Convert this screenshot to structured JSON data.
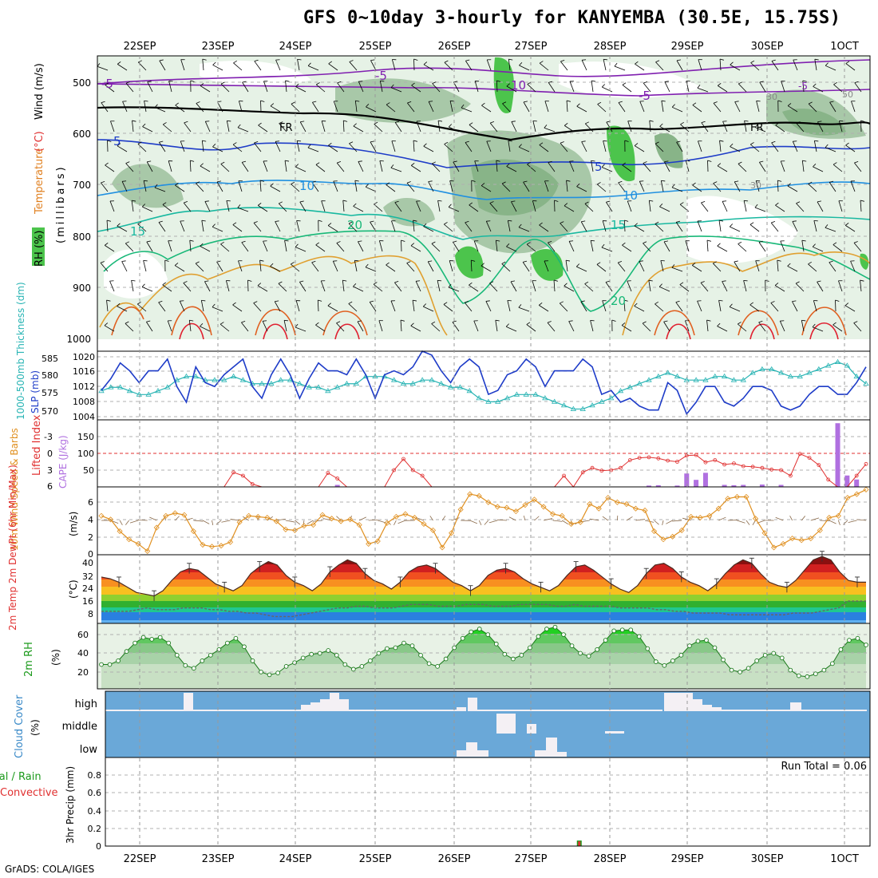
{
  "title": "GFS 0~10day 3-hourly for KANYEMBA (30.5E, 15.75S)",
  "credit": "GrADS: COLA/IGES",
  "colors": {
    "frame": "#000000",
    "grid": "#b0b0b0",
    "rh_shade_light": "#e6f2e6",
    "rh_shade_mid": "#a8c8a8",
    "rh_shade_dark": "#88b488",
    "rh_shade_green": "#4cc44c",
    "slp": "#1e3cc8",
    "thickness": "#28b4b4",
    "lifted_index": "#e03030",
    "cape": "#b070e0",
    "wind_speed": "#e09020",
    "rh2m": "#1c9a1c",
    "cloud_bg": "#6aa8d8",
    "cloud_bar": "#f4f0f4"
  },
  "chart_data": [
    {
      "type": "contour",
      "name": "upper-air",
      "x_labels": [
        "22SEP",
        "23SEP",
        "24SEP",
        "25SEP",
        "26SEP",
        "27SEP",
        "28SEP",
        "29SEP",
        "30SEP",
        "1OCT"
      ],
      "ylabel_left_1": "RH (%)",
      "ylabel_left_2": "Temperature",
      "ylabel_left_3": "(°C)",
      "ylabel_left_4": "Wind (m/s)",
      "ylabel_right": "(millibars)",
      "y_ticks": [
        "500",
        "600",
        "700",
        "800",
        "900",
        "1000"
      ],
      "ylim": [
        1000,
        450
      ],
      "contour_labels": [
        "-5",
        "-5",
        "-5",
        "10",
        "FR",
        "FR",
        "-5",
        "10",
        "5",
        "5",
        "10",
        "15",
        "20",
        "20",
        "15",
        "20",
        "30",
        "50",
        "30"
      ]
    },
    {
      "type": "line",
      "name": "slp-thickness",
      "ylabel_left": "1000-500mb Thickness (dm)",
      "ylabel_right": "SLP (mb)",
      "left_ticks": [
        "585",
        "580",
        "575",
        "570"
      ],
      "right_ticks": [
        "1020",
        "1016",
        "1012",
        "1008",
        "1004"
      ],
      "ylim_left": [
        568,
        587
      ],
      "ylim_right": [
        1003.5,
        1021
      ],
      "series": [
        {
          "name": "SLP",
          "values": [
            1011,
            1014,
            1018,
            1016,
            1013,
            1016,
            1016,
            1019,
            1012,
            1008,
            1017,
            1013,
            1012,
            1015,
            1017,
            1019,
            1012,
            1009,
            1015,
            1019,
            1015,
            1009,
            1014,
            1018,
            1016,
            1016,
            1015,
            1019,
            1015,
            1009,
            1015,
            1016,
            1015,
            1017,
            1021,
            1020,
            1016,
            1013,
            1017,
            1019,
            1017,
            1010,
            1011,
            1015,
            1016,
            1019,
            1017,
            1012,
            1016,
            1016,
            1016,
            1019,
            1017,
            1010,
            1011,
            1008,
            1009,
            1007,
            1006,
            1006,
            1013,
            1011,
            1005,
            1008,
            1012,
            1012,
            1008,
            1007,
            1009,
            1012,
            1012,
            1011,
            1007,
            1006,
            1007,
            1010,
            1012,
            1012,
            1010,
            1010,
            1013,
            1017
          ]
        },
        {
          "name": "Thickness",
          "values": [
            576,
            577,
            577,
            576,
            575,
            575,
            576,
            577,
            579,
            580,
            580,
            579,
            579,
            579,
            580,
            579,
            578,
            578,
            578,
            579,
            579,
            578,
            577,
            577,
            576,
            577,
            578,
            578,
            580,
            580,
            580,
            579,
            578,
            578,
            579,
            579,
            578,
            577,
            577,
            576,
            574,
            573,
            573,
            574,
            575,
            575,
            575,
            574,
            573,
            572,
            571,
            571,
            572,
            573,
            574,
            576,
            577,
            578,
            579,
            580,
            581,
            580,
            579,
            579,
            579,
            580,
            580,
            579,
            579,
            581,
            582,
            582,
            581,
            580,
            580,
            581,
            582,
            583,
            584,
            583,
            580,
            578
          ]
        }
      ]
    },
    {
      "type": "line_bar",
      "name": "lifted-cape",
      "ylabel_left": "Lifted Index",
      "ylabel_right": "CAPE (J/kg)",
      "left_ticks": [
        "-3",
        "0",
        "3",
        "6"
      ],
      "right_ticks": [
        "150",
        "100",
        "50"
      ],
      "cape_max": 200,
      "series": [
        {
          "name": "Lifted Index",
          "values": [
            6,
            6,
            6,
            6,
            6,
            6,
            6,
            6,
            6,
            6,
            6,
            6,
            6,
            6,
            3.4,
            4,
            5.5,
            6,
            6,
            6,
            6,
            6,
            6,
            6,
            3.5,
            4.5,
            6,
            6,
            6,
            6,
            6,
            3,
            1,
            3,
            4,
            6,
            6,
            6,
            6,
            6,
            6,
            6,
            6,
            6,
            6,
            6,
            6,
            6,
            6,
            4,
            6,
            3.4,
            2.6,
            3.1,
            3,
            2.6,
            1.2,
            0.8,
            0.7,
            0.9,
            1.3,
            1.5,
            0.4,
            0.3,
            1.6,
            1.2,
            2,
            1.8,
            2.3,
            2.4,
            2.6,
            2.9,
            3,
            4,
            0.1,
            0.8,
            2.1,
            4.7,
            6,
            6,
            4,
            1.9
          ]
        },
        {
          "name": "CAPE",
          "values": [
            0,
            0,
            0,
            0,
            0,
            0,
            0,
            0,
            0,
            0,
            0,
            0,
            0,
            0,
            0,
            0,
            0,
            0,
            0,
            0,
            0,
            0,
            0,
            0,
            0,
            6,
            0,
            0,
            0,
            0,
            0,
            0,
            0,
            0,
            0,
            0,
            0,
            0,
            0,
            0,
            0,
            0,
            0,
            0,
            0,
            0,
            0,
            0,
            0,
            0,
            0,
            0,
            0,
            0,
            0,
            0,
            0,
            0,
            0,
            0,
            0,
            0,
            0,
            0,
            0,
            0,
            0,
            0,
            0,
            0,
            0,
            0,
            0,
            0,
            0,
            0,
            0,
            0,
            0,
            0,
            0,
            0
          ]
        }
      ]
    },
    {
      "type": "line",
      "name": "wind10m",
      "ylabel_left": "10m Wind Speed & Barbs",
      "ylabel_right": "(m/s)",
      "y_ticks": [
        "6",
        "4",
        "2",
        "0"
      ],
      "ylim": [
        0,
        7.5
      ],
      "series": [
        {
          "name": "Wind speed",
          "values": [
            4.3,
            3.9,
            2.6,
            1.7,
            1.2,
            0.4,
            3,
            4.3,
            4.6,
            4.4,
            2.6,
            1.1,
            0.9,
            1,
            1.4,
            3.6,
            4.3,
            4.2,
            4.1,
            3.7,
            2.8,
            2.7,
            3.2,
            3.3,
            4.4,
            4,
            3.7,
            3.9,
            3.3,
            1.2,
            1.5,
            3.5,
            4.2,
            4.5,
            4.1,
            3.4,
            2.7,
            0.8,
            2.4,
            5,
            6.7,
            6.5,
            5.8,
            5.3,
            5.2,
            4.8,
            5.5,
            6.1,
            5.3,
            4.5,
            4.3,
            3.4,
            3.6,
            5.6,
            5.1,
            6.3,
            5.8,
            5.6,
            5.1,
            4.9,
            2.6,
            1.7,
            2,
            2.7,
            4.2,
            4.1,
            4.3,
            5.1,
            6.2,
            6.4,
            6.4,
            4,
            2.4,
            0.8,
            1.2,
            1.8,
            1.6,
            1.8,
            2.7,
            4.1,
            4.3,
            6.3,
            6.7,
            7.2
          ]
        }
      ]
    },
    {
      "type": "area",
      "name": "temp2m",
      "ylabel_left": "2m Temp 2m DewPt (6hr Min/Max)",
      "ylabel_right": "(°C)",
      "y_ticks": [
        "40",
        "32",
        "24",
        "16",
        "8"
      ],
      "ylim": [
        3,
        43
      ],
      "series": [
        {
          "name": "Temperature",
          "values": [
            30,
            29,
            27,
            24,
            21,
            20,
            19,
            22,
            28,
            33,
            35,
            34,
            30,
            26,
            24,
            22,
            25,
            32,
            36,
            39,
            37,
            31,
            27,
            25,
            22,
            26,
            33,
            37,
            40,
            38,
            32,
            28,
            26,
            23,
            27,
            33,
            36,
            37,
            35,
            31,
            27,
            25,
            22,
            25,
            31,
            34,
            35,
            33,
            29,
            26,
            24,
            22,
            25,
            31,
            36,
            37,
            34,
            30,
            26,
            23,
            21,
            25,
            32,
            37,
            38,
            35,
            30,
            27,
            25,
            22,
            26,
            32,
            37,
            40,
            38,
            32,
            27,
            25,
            24,
            28,
            34,
            40,
            42,
            40,
            33,
            28,
            27,
            27
          ]
        },
        {
          "name": "Dew point",
          "values": [
            10,
            10,
            10,
            10,
            11,
            12,
            11,
            11,
            11,
            12,
            12,
            12,
            11,
            11,
            10,
            10,
            9,
            9,
            8,
            7,
            7,
            7,
            8,
            9,
            10,
            11,
            12,
            12,
            13,
            13,
            12,
            12,
            12,
            13,
            14,
            14,
            14,
            13,
            13,
            13,
            14,
            14,
            14,
            13,
            13,
            13,
            14,
            14,
            14,
            14,
            13,
            13,
            14,
            13,
            13,
            13,
            13,
            12,
            12,
            12,
            12,
            11,
            11,
            10,
            10,
            9,
            9,
            9,
            9,
            8,
            8,
            8,
            8,
            8,
            8,
            8,
            9,
            9,
            9,
            10,
            11,
            12,
            16,
            16,
            16
          ]
        }
      ]
    },
    {
      "type": "area",
      "name": "rh2m",
      "ylabel_left": "2m RH",
      "ylabel_right": "(%)",
      "y_ticks": [
        "60",
        "40",
        "20"
      ],
      "ylim": [
        0,
        70
      ],
      "series": [
        {
          "name": "RH",
          "values": [
            26,
            26,
            30,
            40,
            49,
            55,
            53,
            55,
            49,
            36,
            25,
            22,
            30,
            36,
            42,
            49,
            54,
            45,
            30,
            18,
            15,
            17,
            24,
            28,
            33,
            37,
            38,
            41,
            36,
            26,
            21,
            24,
            30,
            38,
            43,
            44,
            49,
            46,
            36,
            27,
            24,
            32,
            44,
            54,
            61,
            64,
            58,
            48,
            37,
            32,
            36,
            44,
            56,
            64,
            66,
            58,
            46,
            38,
            35,
            42,
            52,
            62,
            63,
            63,
            56,
            43,
            29,
            25,
            30,
            36,
            46,
            51,
            52,
            44,
            31,
            20,
            18,
            22,
            30,
            36,
            38,
            33,
            20,
            14,
            13,
            16,
            20,
            27,
            42,
            52,
            54,
            47
          ]
        }
      ]
    },
    {
      "type": "bar",
      "name": "cloud-cover",
      "ylabel_left": "Cloud Cover",
      "ylabel_right": "(%)",
      "levels": [
        "high",
        "middle",
        "low"
      ]
    },
    {
      "type": "bar",
      "name": "precip",
      "ylabel_left_1": "Total / Rain",
      "ylabel_left_2": "Convective",
      "ylabel_right": "3hr Precip (mm)",
      "run_total": "Run Total = 0.06",
      "y_ticks": [
        "0.8",
        "0.6",
        "0.4",
        "0.2",
        "0"
      ],
      "ylim": [
        0,
        0.96
      ],
      "total_values": [
        0,
        0,
        0,
        0,
        0,
        0,
        0,
        0,
        0,
        0,
        0,
        0,
        0,
        0,
        0,
        0,
        0,
        0,
        0,
        0,
        0,
        0,
        0,
        0,
        0,
        0,
        0,
        0,
        0,
        0,
        0,
        0,
        0,
        0,
        0,
        0,
        0,
        0,
        0,
        0,
        0,
        0,
        0,
        0,
        0,
        0,
        0,
        0,
        0,
        0,
        0,
        0,
        0,
        0,
        0,
        0.06,
        0,
        0,
        0,
        0,
        0,
        0,
        0,
        0,
        0,
        0,
        0,
        0,
        0,
        0,
        0,
        0,
        0,
        0,
        0,
        0,
        0,
        0,
        0,
        0,
        0,
        0,
        0,
        0,
        0,
        0,
        0,
        0,
        0
      ]
    }
  ]
}
